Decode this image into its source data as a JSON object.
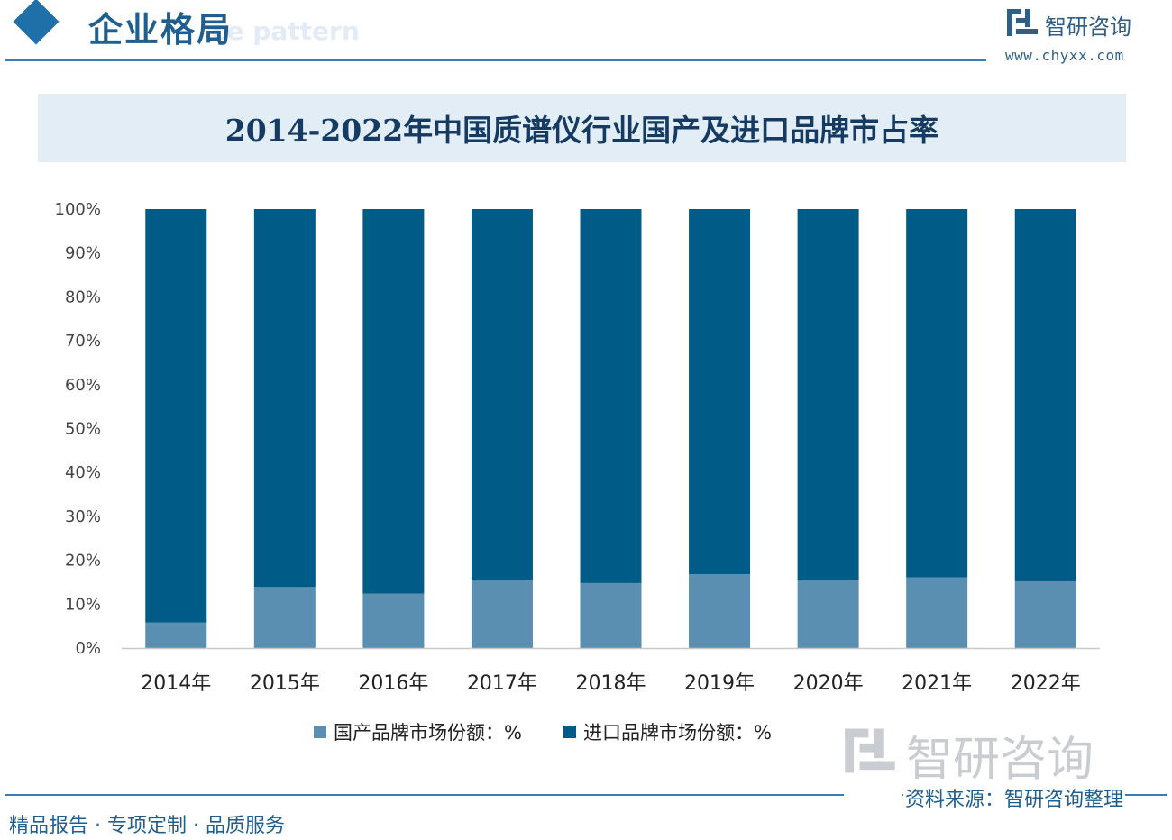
{
  "header": {
    "section_title": "企业格局",
    "subtitle_en": "ce pattern",
    "brand_name": "智研咨询",
    "brand_url": "www.chyxx.com"
  },
  "footer": {
    "source": "资料来源：智研咨询整理",
    "slogan": "精品报告 · 专项定制 · 品质服务",
    "watermark": "智研咨询"
  },
  "colors": {
    "domestic": "#5a8fb2",
    "imported": "#005c87",
    "accent": "#1f6fa8",
    "title_band": "#e2edf6"
  },
  "chart_data": {
    "type": "bar",
    "stacked": true,
    "title": "2014-2022年中国质谱仪行业国产及进口品牌市占率",
    "xlabel": "",
    "ylabel": "",
    "ylim": [
      0,
      100
    ],
    "y_ticks": [
      "0%",
      "10%",
      "20%",
      "30%",
      "40%",
      "50%",
      "60%",
      "70%",
      "80%",
      "90%",
      "100%"
    ],
    "categories": [
      "2014年",
      "2015年",
      "2016年",
      "2017年",
      "2018年",
      "2019年",
      "2020年",
      "2021年",
      "2022年"
    ],
    "series": [
      {
        "name": "国产品牌市场份额：%",
        "values": [
          5.8,
          13.9,
          12.4,
          15.6,
          14.8,
          16.8,
          15.6,
          16.1,
          15.2
        ]
      },
      {
        "name": "进口品牌市场份额：%",
        "values": [
          94.2,
          86.1,
          87.6,
          84.4,
          85.2,
          83.2,
          84.4,
          83.9,
          84.8
        ]
      }
    ],
    "legend_position": "bottom",
    "grid": false
  }
}
